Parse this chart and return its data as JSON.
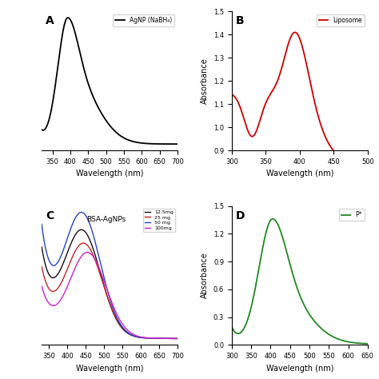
{
  "panel_A": {
    "label": "A",
    "legend": "AgNP (NaBH₄)",
    "color": "#000000",
    "xlim": [
      320,
      700
    ],
    "xlabel": "Wavelength (nm)",
    "xticks": [
      350,
      400,
      450,
      500,
      550,
      600,
      650,
      700
    ]
  },
  "panel_B": {
    "label": "B",
    "legend": "Liposome",
    "color": "#cc0000",
    "xlim": [
      300,
      500
    ],
    "ylim": [
      0.9,
      1.5
    ],
    "yticks": [
      0.9,
      1.0,
      1.1,
      1.2,
      1.3,
      1.4,
      1.5
    ],
    "xlabel": "Wavelength (nm)",
    "ylabel": "Absorbance",
    "xticks": [
      300,
      350,
      400,
      450,
      500
    ]
  },
  "panel_C": {
    "label": "C",
    "annotation": "BSA-AgNPs",
    "colors": [
      "#111111",
      "#cc2222",
      "#2244cc",
      "#cc22cc"
    ],
    "labels": [
      "12.5mg",
      "25 mg",
      "50 mg",
      "100mg"
    ],
    "xlim": [
      330,
      700
    ],
    "xlabel": "Wavelength (nm)",
    "xticks": [
      350,
      400,
      450,
      500,
      550,
      600,
      650,
      700
    ]
  },
  "panel_D": {
    "label": "D",
    "legend": "P*",
    "color": "#228822",
    "xlim": [
      300,
      650
    ],
    "ylim": [
      0.0,
      1.5
    ],
    "yticks": [
      0.0,
      0.3,
      0.6,
      0.9,
      1.2,
      1.5
    ],
    "xlabel": "Wavelength (nm)",
    "ylabel": "Absorbance",
    "xticks": [
      300,
      350,
      400,
      450,
      500,
      550,
      600,
      650
    ]
  }
}
